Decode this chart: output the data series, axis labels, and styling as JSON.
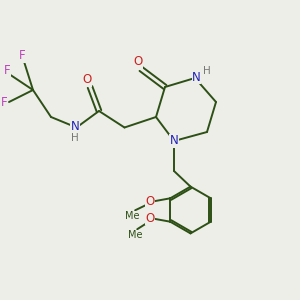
{
  "background_color": "#eeeee8",
  "atom_colors": {
    "C": "#2d5016",
    "N": "#2222bb",
    "O": "#cc2222",
    "F": "#bb44bb",
    "H": "#777777"
  },
  "bond_color": "#2d5016",
  "bond_width": 1.4,
  "figsize": [
    3.0,
    3.0
  ],
  "dpi": 100
}
